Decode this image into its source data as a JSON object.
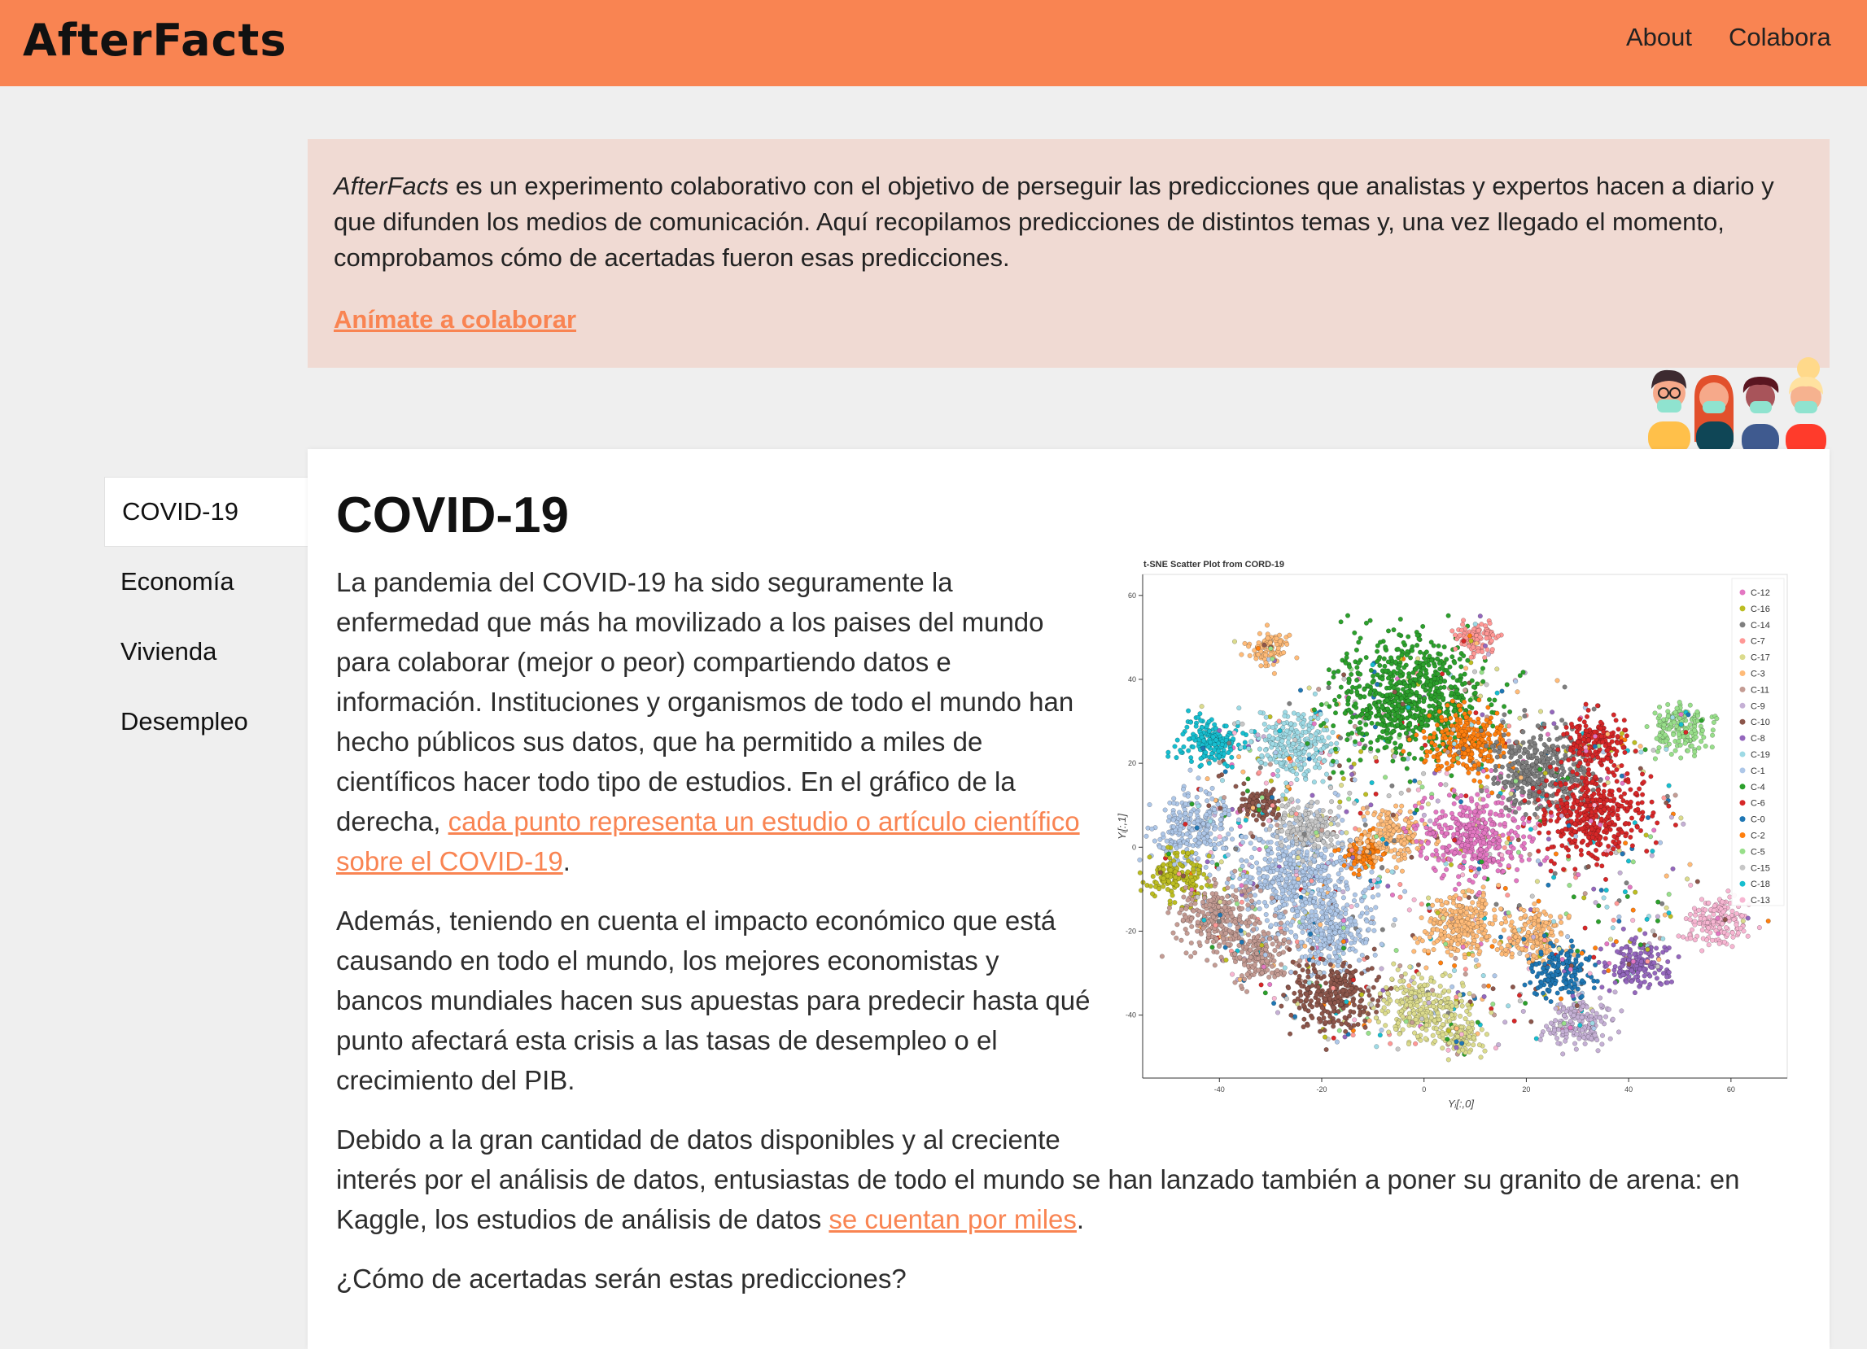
{
  "header": {
    "logo": "AfterFacts",
    "nav": [
      {
        "label": "About"
      },
      {
        "label": "Colabora"
      }
    ],
    "background": "#f98452"
  },
  "banner": {
    "brand": "AfterFacts",
    "text": " es un experimento colaborativo con el objetivo de perseguir las predicciones que analistas y expertos hacen a diario y que difunden los medios de comunicación. Aquí recopilamos predicciones de distintos temas y, una vez llegado el momento, comprobamos cómo de acertadas fueron esas predicciones.",
    "link": "Anímate a colaborar"
  },
  "illustration": {
    "icon": "people-with-masks-illustration"
  },
  "sidebar": {
    "items": [
      {
        "label": "COVID-19",
        "active": true
      },
      {
        "label": "Economía"
      },
      {
        "label": "Vivienda"
      },
      {
        "label": "Desempleo"
      }
    ]
  },
  "main": {
    "title": "COVID-19",
    "p1": "La pandemia del COVID-19 ha sido seguramente la enfermedad que más ha movilizado a los paises del mundo para colaborar (mejor o peor) compartiendo datos e información. Instituciones y organismos de todo el mundo han hecho públicos sus datos, que ha permitido a miles de científicos hacer todo tipo de estudios. En el gráfico de la derecha, ",
    "p1_link": "cada punto representa un estudio o artículo científico sobre el COVID-19",
    "p1_end": ".",
    "p2": "Además, teniendo en cuenta el impacto económico que está causando en todo el mundo, los mejores economistas y bancos mundiales hacen sus apuestas para predecir hasta qué punto afectará esta crisis a las tasas de desempleo o el crecimiento del PIB.",
    "p3": "Debido a la gran cantidad de datos disponibles y al creciente interés por el análisis de datos, entusiastas de todo el mundo se han lanzado también a poner su granito de arena: en Kaggle, los estudios de análisis de datos ",
    "p3_link": "se cuentan por miles",
    "p3_end": ".",
    "p4": "¿Cómo de acertadas serán estas predicciones?"
  },
  "chart_data": {
    "type": "scatter",
    "title": "t-SNE Scatter Plot from CORD-19",
    "xlabel": "Yᵢ[:,0]",
    "ylabel": "Yᵢ[:,1]",
    "xlim": [
      -55,
      71
    ],
    "ylim": [
      -55,
      65
    ],
    "xticks": [
      -40,
      -20,
      0,
      20,
      40,
      60
    ],
    "yticks": [
      -40,
      -20,
      0,
      20,
      40,
      60
    ],
    "grid": false,
    "legend_placement": "top-right",
    "legend": [
      "C-12",
      "C-16",
      "C-14",
      "C-7",
      "C-17",
      "C-3",
      "C-11",
      "C-9",
      "C-10",
      "C-8",
      "C-19",
      "C-1",
      "C-4",
      "C-6",
      "C-0",
      "C-2",
      "C-5",
      "C-15",
      "C-18",
      "C-13"
    ],
    "colors": {
      "C-12": "#e377c2",
      "C-16": "#bcbd22",
      "C-14": "#7f7f7f",
      "C-7": "#ff9896",
      "C-17": "#dbdb8d",
      "C-3": "#ffbb78",
      "C-11": "#c49c94",
      "C-9": "#c5b0d5",
      "C-10": "#8c564b",
      "C-8": "#9467bd",
      "C-19": "#9edae5",
      "C-1": "#aec7e8",
      "C-4": "#2ca02c",
      "C-6": "#d62728",
      "C-0": "#1f77b4",
      "C-2": "#ff7f0e",
      "C-5": "#98df8a",
      "C-15": "#c7c7c7",
      "C-18": "#17becf",
      "C-13": "#f7b6d2"
    },
    "clusters": [
      {
        "name": "C-18",
        "center": [
          -42,
          25
        ],
        "spread": 3
      },
      {
        "name": "C-19",
        "center": [
          -25,
          24
        ],
        "spread": 4
      },
      {
        "name": "C-1",
        "center": [
          -45,
          5
        ],
        "spread": 4
      },
      {
        "name": "C-1",
        "center": [
          -25,
          -7
        ],
        "spread": 6
      },
      {
        "name": "C-1",
        "center": [
          -18,
          -20
        ],
        "spread": 4
      },
      {
        "name": "C-16",
        "center": [
          -48,
          -7
        ],
        "spread": 3
      },
      {
        "name": "C-11",
        "center": [
          -40,
          -17
        ],
        "spread": 4
      },
      {
        "name": "C-11",
        "center": [
          -32,
          -26
        ],
        "spread": 3
      },
      {
        "name": "C-10",
        "center": [
          -18,
          -35
        ],
        "spread": 4
      },
      {
        "name": "C-10",
        "center": [
          -32,
          10
        ],
        "spread": 2
      },
      {
        "name": "C-15",
        "center": [
          -23,
          5
        ],
        "spread": 3
      },
      {
        "name": "C-4",
        "center": [
          -3,
          35
        ],
        "spread": 7
      },
      {
        "name": "C-2",
        "center": [
          -12,
          -2
        ],
        "spread": 2
      },
      {
        "name": "C-2",
        "center": [
          8,
          25
        ],
        "spread": 4
      },
      {
        "name": "C-3",
        "center": [
          -6,
          3
        ],
        "spread": 3
      },
      {
        "name": "C-3",
        "center": [
          7,
          -18
        ],
        "spread": 4
      },
      {
        "name": "C-3",
        "center": [
          -30,
          47
        ],
        "spread": 2
      },
      {
        "name": "C-3",
        "center": [
          22,
          -21
        ],
        "spread": 3
      },
      {
        "name": "C-12",
        "center": [
          10,
          3
        ],
        "spread": 5
      },
      {
        "name": "C-14",
        "center": [
          23,
          18
        ],
        "spread": 5
      },
      {
        "name": "C-6",
        "center": [
          33,
          8
        ],
        "spread": 5
      },
      {
        "name": "C-6",
        "center": [
          33,
          25
        ],
        "spread": 3
      },
      {
        "name": "C-7",
        "center": [
          10,
          50
        ],
        "spread": 2
      },
      {
        "name": "C-17",
        "center": [
          0,
          -38
        ],
        "spread": 4
      },
      {
        "name": "C-17",
        "center": [
          7,
          -45
        ],
        "spread": 2
      },
      {
        "name": "C-9",
        "center": [
          30,
          -42
        ],
        "spread": 3
      },
      {
        "name": "C-8",
        "center": [
          42,
          -28
        ],
        "spread": 3
      },
      {
        "name": "C-0",
        "center": [
          27,
          -30
        ],
        "spread": 3
      },
      {
        "name": "C-5",
        "center": [
          50,
          28
        ],
        "spread": 3
      },
      {
        "name": "C-13",
        "center": [
          57,
          -17
        ],
        "spread": 3
      }
    ]
  }
}
